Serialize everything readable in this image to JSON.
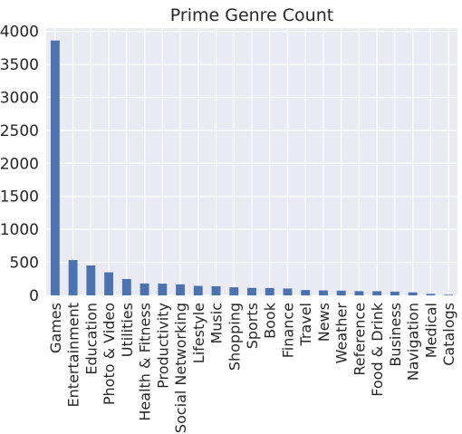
{
  "chart_data": {
    "type": "bar",
    "title": "Prime Genre Count",
    "xlabel": "",
    "ylabel": "",
    "ylim": [
      0,
      4050
    ],
    "yticks": [
      0,
      500,
      1000,
      1500,
      2000,
      2500,
      3000,
      3500,
      4000
    ],
    "grid": true,
    "legend": "none",
    "colors": {
      "bar": "#4c72b0",
      "plot_bg": "#eaeaf2",
      "grid": "#ffffff"
    },
    "categories": [
      "Games",
      "Entertainment",
      "Education",
      "Photo & Video",
      "Utilities",
      "Health & Fitness",
      "Productivity",
      "Social Networking",
      "Lifestyle",
      "Music",
      "Shopping",
      "Sports",
      "Book",
      "Finance",
      "Travel",
      "News",
      "Weather",
      "Reference",
      "Food & Drink",
      "Business",
      "Navigation",
      "Medical",
      "Catalogs"
    ],
    "values": [
      3862,
      535,
      453,
      349,
      248,
      180,
      178,
      167,
      144,
      138,
      122,
      114,
      112,
      104,
      81,
      75,
      72,
      64,
      63,
      57,
      46,
      23,
      10
    ]
  }
}
